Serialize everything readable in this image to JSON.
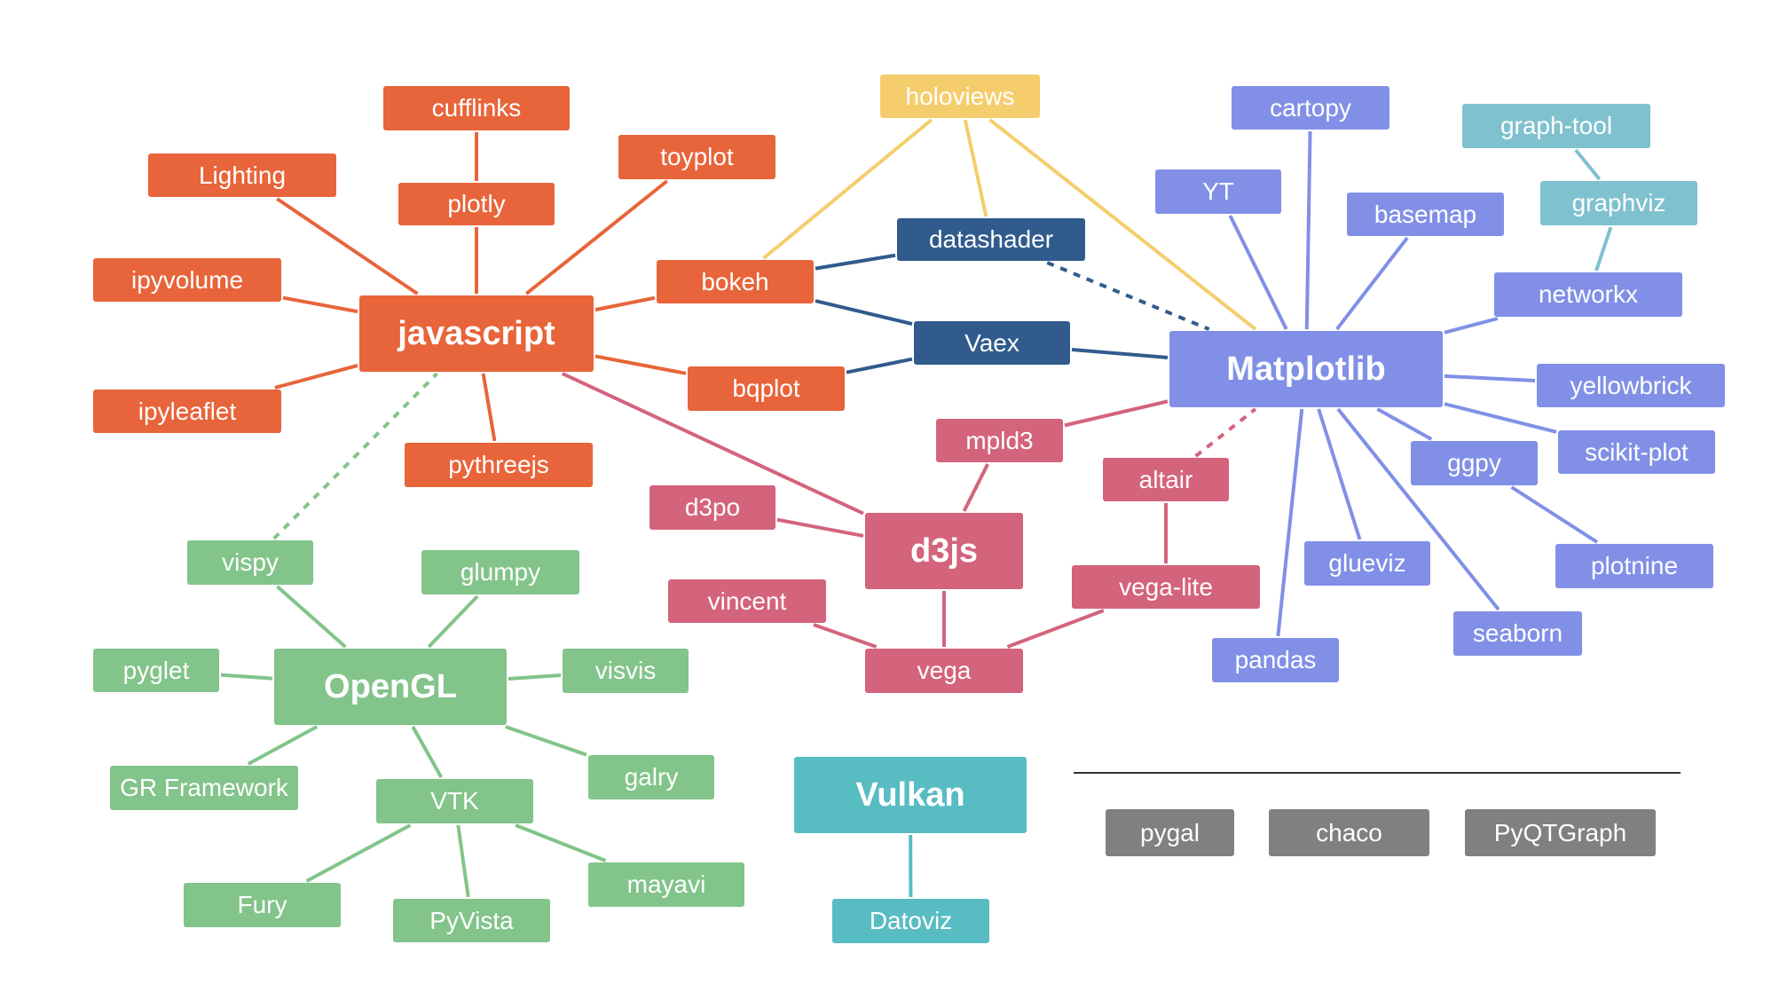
{
  "colors": {
    "javascript": "#e8643a",
    "holoviews": "#f5cd6d",
    "datashader": "#305b8c",
    "matplotlib": "#8190e6",
    "graphviz": "#7fc1cf",
    "d3js": "#d4637c",
    "opengl": "#82c48a",
    "vulkan": "#58bcc3",
    "other": "#808080"
  },
  "nodes": [
    {
      "id": "javascript",
      "label": "javascript",
      "group": "javascript"
    },
    {
      "id": "cufflinks",
      "label": "cufflinks",
      "group": "javascript"
    },
    {
      "id": "plotly",
      "label": "plotly",
      "group": "javascript"
    },
    {
      "id": "toyplot",
      "label": "toyplot",
      "group": "javascript"
    },
    {
      "id": "lighting",
      "label": "Lighting",
      "group": "javascript"
    },
    {
      "id": "ipyvolume",
      "label": "ipyvolume",
      "group": "javascript"
    },
    {
      "id": "ipyleaflet",
      "label": "ipyleaflet",
      "group": "javascript"
    },
    {
      "id": "pythreejs",
      "label": "pythreejs",
      "group": "javascript"
    },
    {
      "id": "bokeh",
      "label": "bokeh",
      "group": "javascript"
    },
    {
      "id": "bqplot",
      "label": "bqplot",
      "group": "javascript"
    },
    {
      "id": "holoviews",
      "label": "holoviews",
      "group": "holoviews"
    },
    {
      "id": "datashader",
      "label": "datashader",
      "group": "datashader"
    },
    {
      "id": "vaex",
      "label": "Vaex",
      "group": "datashader"
    },
    {
      "id": "matplotlib",
      "label": "Matplotlib",
      "group": "matplotlib"
    },
    {
      "id": "cartopy",
      "label": "cartopy",
      "group": "matplotlib"
    },
    {
      "id": "yt",
      "label": "YT",
      "group": "matplotlib"
    },
    {
      "id": "basemap",
      "label": "basemap",
      "group": "matplotlib"
    },
    {
      "id": "graphtool",
      "label": "graph-tool",
      "group": "graphviz"
    },
    {
      "id": "graphviz",
      "label": "graphviz",
      "group": "graphviz"
    },
    {
      "id": "networkx",
      "label": "networkx",
      "group": "matplotlib"
    },
    {
      "id": "yellowbrick",
      "label": "yellowbrick",
      "group": "matplotlib"
    },
    {
      "id": "scikitplot",
      "label": "scikit-plot",
      "group": "matplotlib"
    },
    {
      "id": "ggpy",
      "label": "ggpy",
      "group": "matplotlib"
    },
    {
      "id": "plotnine",
      "label": "plotnine",
      "group": "matplotlib"
    },
    {
      "id": "glueviz",
      "label": "glueviz",
      "group": "matplotlib"
    },
    {
      "id": "seaborn",
      "label": "seaborn",
      "group": "matplotlib"
    },
    {
      "id": "pandas",
      "label": "pandas",
      "group": "matplotlib"
    },
    {
      "id": "mpld3",
      "label": "mpld3",
      "group": "d3js"
    },
    {
      "id": "altair",
      "label": "altair",
      "group": "d3js"
    },
    {
      "id": "d3po",
      "label": "d3po",
      "group": "d3js"
    },
    {
      "id": "d3js",
      "label": "d3js",
      "group": "d3js"
    },
    {
      "id": "vegalite",
      "label": "vega-lite",
      "group": "d3js"
    },
    {
      "id": "vincent",
      "label": "vincent",
      "group": "d3js"
    },
    {
      "id": "vega",
      "label": "vega",
      "group": "d3js"
    },
    {
      "id": "vispy",
      "label": "vispy",
      "group": "opengl"
    },
    {
      "id": "glumpy",
      "label": "glumpy",
      "group": "opengl"
    },
    {
      "id": "pyglet",
      "label": "pyglet",
      "group": "opengl"
    },
    {
      "id": "opengl",
      "label": "OpenGL",
      "group": "opengl"
    },
    {
      "id": "visvis",
      "label": "visvis",
      "group": "opengl"
    },
    {
      "id": "grframework",
      "label": "GR Framework",
      "group": "opengl"
    },
    {
      "id": "galry",
      "label": "galry",
      "group": "opengl"
    },
    {
      "id": "vtk",
      "label": "VTK",
      "group": "opengl"
    },
    {
      "id": "mayavi",
      "label": "mayavi",
      "group": "opengl"
    },
    {
      "id": "fury",
      "label": "Fury",
      "group": "opengl"
    },
    {
      "id": "pyvista",
      "label": "PyVista",
      "group": "opengl"
    },
    {
      "id": "vulkan",
      "label": "Vulkan",
      "group": "vulkan"
    },
    {
      "id": "datoviz",
      "label": "Datoviz",
      "group": "vulkan"
    },
    {
      "id": "pygal",
      "label": "pygal",
      "group": "other"
    },
    {
      "id": "chaco",
      "label": "chaco",
      "group": "other"
    },
    {
      "id": "pyqtgraph",
      "label": "PyQTGraph",
      "group": "other"
    }
  ],
  "edges": [
    {
      "from": "cufflinks",
      "to": "plotly",
      "group": "javascript"
    },
    {
      "from": "plotly",
      "to": "javascript",
      "group": "javascript"
    },
    {
      "from": "toyplot",
      "to": "javascript",
      "group": "javascript"
    },
    {
      "from": "lighting",
      "to": "javascript",
      "group": "javascript"
    },
    {
      "from": "ipyvolume",
      "to": "javascript",
      "group": "javascript"
    },
    {
      "from": "ipyleaflet",
      "to": "javascript",
      "group": "javascript"
    },
    {
      "from": "pythreejs",
      "to": "javascript",
      "group": "javascript"
    },
    {
      "from": "bokeh",
      "to": "javascript",
      "group": "javascript"
    },
    {
      "from": "bqplot",
      "to": "javascript",
      "group": "javascript"
    },
    {
      "from": "holoviews",
      "to": "bokeh",
      "group": "holoviews"
    },
    {
      "from": "holoviews",
      "to": "datashader",
      "group": "holoviews"
    },
    {
      "from": "holoviews",
      "to": "matplotlib",
      "group": "holoviews"
    },
    {
      "from": "datashader",
      "to": "bokeh",
      "group": "datashader"
    },
    {
      "from": "vaex",
      "to": "bokeh",
      "group": "datashader"
    },
    {
      "from": "vaex",
      "to": "bqplot",
      "group": "datashader"
    },
    {
      "from": "vaex",
      "to": "matplotlib",
      "group": "datashader"
    },
    {
      "from": "datashader",
      "to": "matplotlib",
      "group": "datashader",
      "dashed": true
    },
    {
      "from": "cartopy",
      "to": "matplotlib",
      "group": "matplotlib"
    },
    {
      "from": "yt",
      "to": "matplotlib",
      "group": "matplotlib"
    },
    {
      "from": "basemap",
      "to": "matplotlib",
      "group": "matplotlib"
    },
    {
      "from": "graphtool",
      "to": "graphviz",
      "group": "graphviz"
    },
    {
      "from": "graphviz",
      "to": "networkx",
      "group": "graphviz"
    },
    {
      "from": "networkx",
      "to": "matplotlib",
      "group": "matplotlib"
    },
    {
      "from": "yellowbrick",
      "to": "matplotlib",
      "group": "matplotlib"
    },
    {
      "from": "scikitplot",
      "to": "matplotlib",
      "group": "matplotlib"
    },
    {
      "from": "ggpy",
      "to": "matplotlib",
      "group": "matplotlib"
    },
    {
      "from": "plotnine",
      "to": "ggpy",
      "group": "matplotlib"
    },
    {
      "from": "glueviz",
      "to": "matplotlib",
      "group": "matplotlib"
    },
    {
      "from": "seaborn",
      "to": "matplotlib",
      "group": "matplotlib"
    },
    {
      "from": "pandas",
      "to": "matplotlib",
      "group": "matplotlib"
    },
    {
      "from": "mpld3",
      "to": "matplotlib",
      "group": "d3js"
    },
    {
      "from": "mpld3",
      "to": "d3js",
      "group": "d3js"
    },
    {
      "from": "altair",
      "to": "matplotlib",
      "group": "d3js",
      "dashed": true
    },
    {
      "from": "altair",
      "to": "vegalite",
      "group": "d3js"
    },
    {
      "from": "vegalite",
      "to": "vega",
      "group": "d3js"
    },
    {
      "from": "d3po",
      "to": "d3js",
      "group": "d3js"
    },
    {
      "from": "javascript",
      "to": "d3js",
      "group": "d3js"
    },
    {
      "from": "vincent",
      "to": "vega",
      "group": "d3js"
    },
    {
      "from": "vega",
      "to": "d3js",
      "group": "d3js"
    },
    {
      "from": "vispy",
      "to": "javascript",
      "group": "opengl",
      "dashed": true
    },
    {
      "from": "vispy",
      "to": "opengl",
      "group": "opengl"
    },
    {
      "from": "glumpy",
      "to": "opengl",
      "group": "opengl"
    },
    {
      "from": "pyglet",
      "to": "opengl",
      "group": "opengl"
    },
    {
      "from": "visvis",
      "to": "opengl",
      "group": "opengl"
    },
    {
      "from": "grframework",
      "to": "opengl",
      "group": "opengl"
    },
    {
      "from": "galry",
      "to": "opengl",
      "group": "opengl"
    },
    {
      "from": "vtk",
      "to": "opengl",
      "group": "opengl"
    },
    {
      "from": "mayavi",
      "to": "vtk",
      "group": "opengl"
    },
    {
      "from": "fury",
      "to": "vtk",
      "group": "opengl"
    },
    {
      "from": "pyvista",
      "to": "vtk",
      "group": "opengl"
    },
    {
      "from": "datoviz",
      "to": "vulkan",
      "group": "vulkan"
    }
  ]
}
